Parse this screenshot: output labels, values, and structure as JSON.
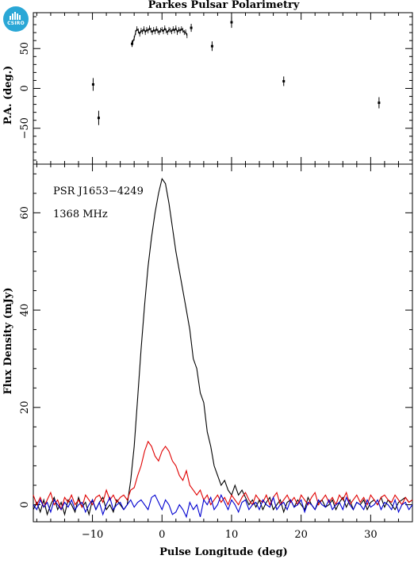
{
  "logo": {
    "text": "CSIRO",
    "color": "#2aa7d6"
  },
  "chart_data": [
    {
      "type": "scatter",
      "title": "Parkes Pulsar Polarimetry",
      "xlabel": "",
      "ylabel": "P.A. (deg.)",
      "xlim": [
        -18.5,
        36
      ],
      "ylim": [
        -95,
        95
      ],
      "yticks": [
        -50,
        0,
        50
      ],
      "xticks": [
        -10,
        0,
        10,
        20,
        30
      ],
      "points": [
        {
          "x": -9.9,
          "y": 5,
          "err": 8
        },
        {
          "x": -9.1,
          "y": -37,
          "err": 9
        },
        {
          "x": -4.3,
          "y": 56,
          "err": 4
        },
        {
          "x": 4.2,
          "y": 76,
          "err": 5
        },
        {
          "x": 7.2,
          "y": 53,
          "err": 6
        },
        {
          "x": 10.0,
          "y": 83,
          "err": 7
        },
        {
          "x": 17.5,
          "y": 9,
          "err": 6
        },
        {
          "x": 31.2,
          "y": -18,
          "err": 7
        }
      ],
      "curve": {
        "x": [
          -4.2,
          -4.0,
          -3.8,
          -3.6,
          -3.4,
          -3.2,
          -3.0,
          -2.8,
          -2.6,
          -2.4,
          -2.2,
          -2.0,
          -1.8,
          -1.6,
          -1.4,
          -1.2,
          -1.0,
          -0.8,
          -0.6,
          -0.4,
          -0.2,
          0.0,
          0.2,
          0.4,
          0.6,
          0.8,
          1.0,
          1.2,
          1.4,
          1.6,
          1.8,
          2.0,
          2.2,
          2.4,
          2.6,
          2.8,
          3.0,
          3.2,
          3.4,
          3.6
        ],
        "y": [
          58,
          63,
          70,
          75,
          72,
          68,
          73,
          71,
          75,
          70,
          74,
          72,
          76,
          73,
          70,
          74,
          71,
          75,
          72,
          70,
          73,
          74,
          71,
          76,
          72,
          70,
          74,
          73,
          71,
          75,
          72,
          76,
          70,
          74,
          72,
          75,
          73,
          70,
          71,
          66
        ],
        "err": 3
      }
    },
    {
      "type": "line",
      "title": "",
      "xlabel": "Pulse Longitude (deg)",
      "ylabel": "Flux Density (mJy)",
      "xlim": [
        -18.5,
        36
      ],
      "ylim": [
        -3.5,
        70
      ],
      "yticks": [
        0,
        20,
        40,
        60
      ],
      "xticks": [
        -10,
        0,
        10,
        20,
        30
      ],
      "annotations": [
        "PSR J1653−4249",
        "1368 MHz"
      ],
      "x": [
        -18.5,
        -18,
        -17.5,
        -17,
        -16.5,
        -16,
        -15.5,
        -15,
        -14.5,
        -14,
        -13.5,
        -13,
        -12.5,
        -12,
        -11.5,
        -11,
        -10.5,
        -10,
        -9.5,
        -9,
        -8.5,
        -8,
        -7.5,
        -7,
        -6.5,
        -6,
        -5.5,
        -5,
        -4.5,
        -4,
        -3.5,
        -3,
        -2.5,
        -2,
        -1.5,
        -1,
        -0.5,
        0,
        0.5,
        1,
        1.5,
        2,
        2.5,
        3,
        3.5,
        4,
        4.5,
        5,
        5.5,
        6,
        6.5,
        7,
        7.5,
        8,
        8.5,
        9,
        9.5,
        10,
        10.5,
        11,
        11.5,
        12,
        12.5,
        13,
        13.5,
        14,
        14.5,
        15,
        15.5,
        16,
        16.5,
        17,
        17.5,
        18,
        18.5,
        19,
        19.5,
        20,
        20.5,
        21,
        21.5,
        22,
        22.5,
        23,
        23.5,
        24,
        24.5,
        25,
        25.5,
        26,
        26.5,
        27,
        27.5,
        28,
        28.5,
        29,
        29.5,
        30,
        30.5,
        31,
        31.5,
        32,
        32.5,
        33,
        33.5,
        34,
        34.5,
        35,
        35.5,
        36
      ],
      "series": [
        {
          "color": "#000000",
          "values": [
            -1,
            0.5,
            -1.5,
            1,
            -2,
            0,
            1.5,
            -1,
            0.5,
            -2,
            1,
            0,
            -1.5,
            1.5,
            -0.5,
            0.5,
            -2,
            1,
            -1,
            0.5,
            1.5,
            -1,
            0,
            -1.5,
            1,
            0,
            -1,
            0,
            5,
            12,
            22,
            32,
            41,
            49,
            55,
            60,
            64,
            67,
            66,
            62,
            57,
            52,
            48,
            44,
            40,
            36,
            30,
            28,
            23,
            21,
            15,
            12,
            8,
            6,
            4,
            5,
            3,
            2,
            4,
            2,
            3,
            1.5,
            0,
            1,
            -0.5,
            1,
            -1,
            0.5,
            1.5,
            -1,
            0,
            1,
            -1.5,
            0.5,
            1,
            -0.5,
            1,
            0,
            -1,
            1.5,
            0,
            -1,
            0.5,
            1,
            -0.5,
            0,
            1,
            -1,
            0.5,
            1.5,
            -0.5,
            1,
            -1,
            0.5,
            0,
            1,
            -1,
            0.5,
            1,
            0,
            1.5,
            -0.5,
            1,
            0,
            -1,
            0.5,
            1,
            1.5,
            0.5,
            1
          ]
        },
        {
          "color": "#e00000",
          "values": [
            2,
            0,
            1.5,
            -0.5,
            1,
            2.5,
            0,
            1,
            -1,
            1.5,
            0.5,
            2,
            0,
            1,
            -0.5,
            2,
            1,
            0,
            1.5,
            2,
            0.5,
            3,
            1,
            2,
            0.5,
            1.5,
            2,
            1,
            3,
            3.5,
            6,
            8,
            11,
            13,
            12,
            10,
            9,
            11,
            12,
            11,
            9,
            8,
            6,
            5,
            7,
            4,
            3,
            2,
            3,
            1,
            2,
            0,
            1,
            2,
            0.5,
            1.5,
            0,
            2,
            1,
            0,
            1.5,
            2.5,
            1,
            0,
            2,
            1,
            0.5,
            2,
            0,
            1.5,
            2.5,
            0,
            1,
            2,
            0.5,
            1.5,
            0,
            2,
            1,
            0,
            1.5,
            2.5,
            0,
            1,
            2,
            0.5,
            1.5,
            0,
            2,
            1,
            2.5,
            0,
            1,
            2,
            0.5,
            1.5,
            0,
            2,
            1,
            0,
            1.5,
            2,
            1,
            0.5,
            2,
            1,
            0,
            1.5,
            0.5,
            1
          ]
        },
        {
          "color": "#0000d0",
          "values": [
            0,
            -1,
            1,
            -0.5,
            0.5,
            -1.5,
            1,
            0,
            -1,
            0.5,
            -0.5,
            1,
            -1,
            0,
            0.5,
            -1.5,
            0,
            1,
            -1,
            0.5,
            -2,
            0,
            1.5,
            -1,
            0,
            0.5,
            -1,
            0,
            1,
            -0.5,
            0.5,
            1,
            0,
            -1,
            1.5,
            2,
            0.5,
            -1,
            1,
            0,
            -2,
            -1.5,
            0,
            -1,
            -2.5,
            0.5,
            -1,
            0,
            -2.5,
            1,
            0,
            1.5,
            -1,
            0,
            2,
            0.5,
            -1,
            1,
            0,
            -1.5,
            0.5,
            1,
            -1,
            0,
            0.5,
            -1,
            1,
            0,
            -0.5,
            1.5,
            -1,
            0,
            0.5,
            -1,
            1,
            -0.5,
            0,
            1,
            -1.5,
            0.5,
            0,
            -1,
            1,
            0,
            -0.5,
            1,
            -1,
            0,
            0.5,
            -1,
            1.5,
            0,
            -1,
            0.5,
            0,
            -1,
            1,
            -0.5,
            0,
            1,
            -1,
            0.5,
            0,
            -1,
            1,
            -1.5,
            0,
            0.5,
            -1,
            0
          ]
        }
      ]
    }
  ]
}
